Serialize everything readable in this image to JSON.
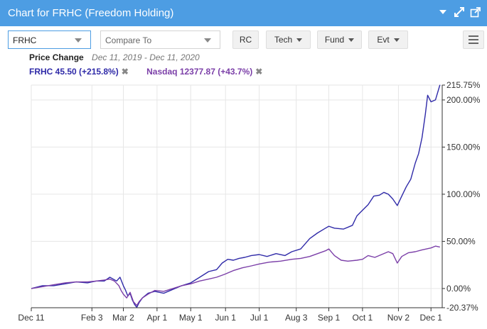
{
  "window": {
    "title": "Chart for FRHC (Freedom Holding)",
    "icons": [
      "collapse-caret-icon",
      "expand-icon",
      "popout-icon"
    ]
  },
  "toolbar": {
    "symbol_value": "FRHC",
    "compare_placeholder": "Compare To",
    "rc_label": "RC",
    "tech_label": "Tech",
    "fund_label": "Fund",
    "evt_label": "Evt",
    "menu_icon": "hamburger-menu-icon"
  },
  "header": {
    "label": "Price Change",
    "date_range": "Dec 11, 2019 - Dec 11, 2020"
  },
  "legend": {
    "items": [
      {
        "text": "FRHC 45.50 (+215.8%)",
        "color": "#2f2aa8"
      },
      {
        "text": "Nasdaq 12377.87 (+43.7%)",
        "color": "#7b3fa8"
      }
    ],
    "close_symbol": "✖"
  },
  "chart_data": {
    "type": "line",
    "x_tick_labels": [
      "Dec 11",
      "Feb 3",
      "Mar 2",
      "Apr 1",
      "May 1",
      "Jun 1",
      "Jul 1",
      "Aug 3",
      "Sep 1",
      "Oct 1",
      "Nov 2",
      "Dec 1"
    ],
    "x_tick_days": [
      0,
      54,
      82,
      112,
      142,
      173,
      203,
      236,
      265,
      295,
      327,
      356
    ],
    "x_range_days": [
      0,
      366
    ],
    "y_ticks": [
      0,
      50,
      100,
      150,
      200
    ],
    "y_tick_labels": [
      "0.00%",
      "50.00%",
      "100.00%",
      "150.00%",
      "200.00%"
    ],
    "ylim": [
      -20.37,
      215.75
    ],
    "ylim_labels": [
      "-20.37%",
      "215.75%"
    ],
    "grid": true,
    "series": [
      {
        "name": "FRHC 45.50 (+215.8%)",
        "color": "#2f2aa8",
        "points": [
          [
            0,
            0
          ],
          [
            10,
            3
          ],
          [
            20,
            3
          ],
          [
            30,
            5
          ],
          [
            40,
            7
          ],
          [
            50,
            6
          ],
          [
            58,
            8
          ],
          [
            65,
            8
          ],
          [
            70,
            12
          ],
          [
            76,
            8
          ],
          [
            79,
            12
          ],
          [
            82,
            3
          ],
          [
            84,
            -2
          ],
          [
            86,
            -8
          ],
          [
            88,
            -5
          ],
          [
            90,
            -12
          ],
          [
            92,
            -17
          ],
          [
            94,
            -20
          ],
          [
            96,
            -15
          ],
          [
            99,
            -10
          ],
          [
            104,
            -5
          ],
          [
            110,
            -3
          ],
          [
            118,
            -5
          ],
          [
            126,
            -1
          ],
          [
            134,
            3
          ],
          [
            142,
            6
          ],
          [
            150,
            12
          ],
          [
            158,
            18
          ],
          [
            165,
            20
          ],
          [
            170,
            27
          ],
          [
            175,
            31
          ],
          [
            180,
            30
          ],
          [
            185,
            32
          ],
          [
            190,
            33
          ],
          [
            196,
            35
          ],
          [
            203,
            36
          ],
          [
            210,
            34
          ],
          [
            218,
            37
          ],
          [
            226,
            35
          ],
          [
            232,
            39
          ],
          [
            240,
            42
          ],
          [
            248,
            53
          ],
          [
            255,
            59
          ],
          [
            262,
            64
          ],
          [
            265,
            66
          ],
          [
            270,
            64
          ],
          [
            278,
            63
          ],
          [
            286,
            67
          ],
          [
            290,
            77
          ],
          [
            295,
            83
          ],
          [
            300,
            89
          ],
          [
            305,
            98
          ],
          [
            310,
            99
          ],
          [
            314,
            102
          ],
          [
            318,
            100
          ],
          [
            322,
            95
          ],
          [
            326,
            88
          ],
          [
            330,
            98
          ],
          [
            334,
            108
          ],
          [
            338,
            116
          ],
          [
            342,
            133
          ],
          [
            345,
            143
          ],
          [
            348,
            160
          ],
          [
            351,
            185
          ],
          [
            353,
            205
          ],
          [
            356,
            198
          ],
          [
            360,
            200
          ],
          [
            364,
            216
          ]
        ]
      },
      {
        "name": "Nasdaq 12377.87 (+43.7%)",
        "color": "#7b3fa8",
        "points": [
          [
            0,
            0
          ],
          [
            10,
            2
          ],
          [
            20,
            4
          ],
          [
            30,
            6
          ],
          [
            40,
            7
          ],
          [
            50,
            7
          ],
          [
            58,
            8
          ],
          [
            65,
            9
          ],
          [
            70,
            10
          ],
          [
            74,
            8
          ],
          [
            78,
            3
          ],
          [
            80,
            -2
          ],
          [
            82,
            -6
          ],
          [
            85,
            -10
          ],
          [
            88,
            -4
          ],
          [
            91,
            -14
          ],
          [
            94,
            -18
          ],
          [
            96,
            -14
          ],
          [
            99,
            -10
          ],
          [
            104,
            -6
          ],
          [
            110,
            -2
          ],
          [
            118,
            -3
          ],
          [
            126,
            0
          ],
          [
            134,
            3
          ],
          [
            142,
            5
          ],
          [
            150,
            8
          ],
          [
            158,
            10
          ],
          [
            165,
            12
          ],
          [
            172,
            15
          ],
          [
            180,
            19
          ],
          [
            188,
            22
          ],
          [
            196,
            24
          ],
          [
            203,
            26
          ],
          [
            212,
            28
          ],
          [
            222,
            29
          ],
          [
            232,
            31
          ],
          [
            240,
            32
          ],
          [
            248,
            34
          ],
          [
            255,
            37
          ],
          [
            262,
            40
          ],
          [
            265,
            42
          ],
          [
            270,
            35
          ],
          [
            276,
            30
          ],
          [
            282,
            29
          ],
          [
            290,
            30
          ],
          [
            295,
            31
          ],
          [
            300,
            35
          ],
          [
            306,
            33
          ],
          [
            312,
            36
          ],
          [
            318,
            39
          ],
          [
            322,
            37
          ],
          [
            326,
            27
          ],
          [
            330,
            34
          ],
          [
            336,
            38
          ],
          [
            342,
            39
          ],
          [
            348,
            41
          ],
          [
            356,
            43
          ],
          [
            360,
            45
          ],
          [
            364,
            44
          ]
        ]
      }
    ]
  }
}
